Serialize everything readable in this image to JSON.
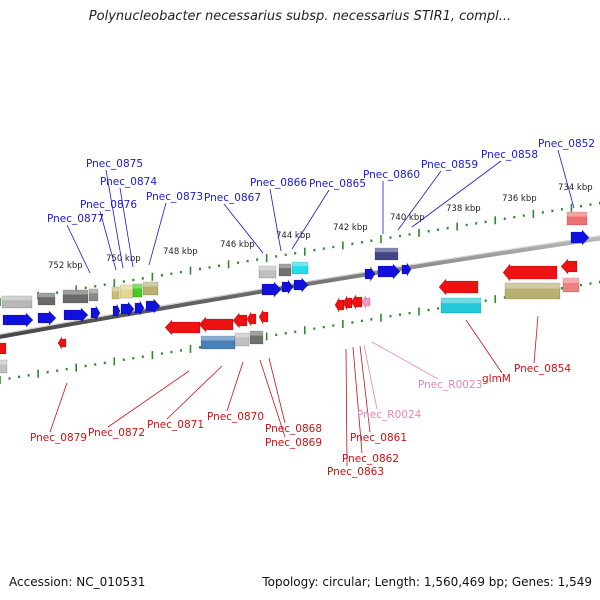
{
  "title": "Polynucleobacter necessarius subsp. necessarius STIR1, compl...",
  "footer": {
    "accession": "Accession: NC_010531",
    "summary": "Topology: circular; Length: 1,560,469 bp; Genes: 1,549"
  },
  "scale_labels": [
    "734 kbp",
    "736 kbp",
    "738 kbp",
    "740 kbp",
    "742 kbp",
    "744 kbp",
    "746 kbp",
    "748 kbp",
    "750 kbp",
    "752 kbp"
  ],
  "colors": {
    "backbone": "#6e6e6e",
    "tick": "#2a8a2a",
    "forward_label": "#1a1acc",
    "reverse_label": "#cc1111",
    "rna_label": "#e986b4",
    "cds_forward": "#1111dd",
    "cds_reverse": "#ee1111"
  },
  "forward_genes": [
    "Pnec_0852",
    "Pnec_0858",
    "Pnec_0859",
    "Pnec_0860",
    "Pnec_0865",
    "Pnec_0866",
    "Pnec_0867",
    "Pnec_0873",
    "Pnec_0874",
    "Pnec_0875",
    "Pnec_0876",
    "Pnec_0877"
  ],
  "reverse_genes": [
    "Pnec_0854",
    "glmM",
    "Pnec_R0023",
    "Pnec_R0024",
    "Pnec_0861",
    "Pnec_0862",
    "Pnec_0863",
    "Pnec_0868",
    "Pnec_0869",
    "Pnec_0870",
    "Pnec_0871",
    "Pnec_0872",
    "Pnec_0879"
  ]
}
